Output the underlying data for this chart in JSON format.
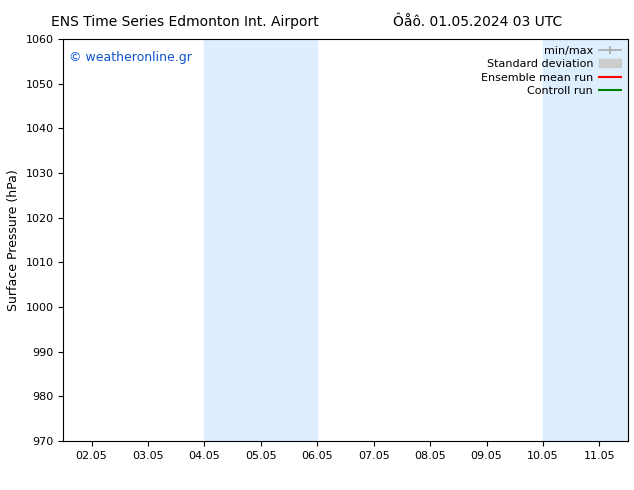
{
  "title_left": "ENS Time Series Edmonton Int. Airport",
  "title_right": "Ôåô. 01.05.2024 03 UTC",
  "ylabel": "Surface Pressure (hPa)",
  "ylim": [
    970,
    1060
  ],
  "yticks": [
    970,
    980,
    990,
    1000,
    1010,
    1020,
    1030,
    1040,
    1050,
    1060
  ],
  "xtick_labels": [
    "02.05",
    "03.05",
    "04.05",
    "05.05",
    "06.05",
    "07.05",
    "08.05",
    "09.05",
    "10.05",
    "11.05"
  ],
  "watermark": "© weatheronline.gr",
  "shade_color": "#ddeeff",
  "shaded_regions": [
    {
      "xstart": 2.0,
      "xend": 4.0
    },
    {
      "xstart": 8.0,
      "xend": 10.0
    }
  ],
  "bg_color": "#ffffff",
  "plot_bg_color": "#ffffff",
  "spine_color": "#000000",
  "tick_color": "#000000",
  "figsize": [
    6.34,
    4.9
  ],
  "dpi": 100,
  "title_fontsize": 10,
  "ylabel_fontsize": 9,
  "tick_fontsize": 8,
  "watermark_color": "#1155cc",
  "watermark_fontsize": 9,
  "legend_fontsize": 8,
  "minmax_color": "#aaaaaa",
  "stddev_color": "#cccccc",
  "ensemble_color": "red",
  "control_color": "green"
}
